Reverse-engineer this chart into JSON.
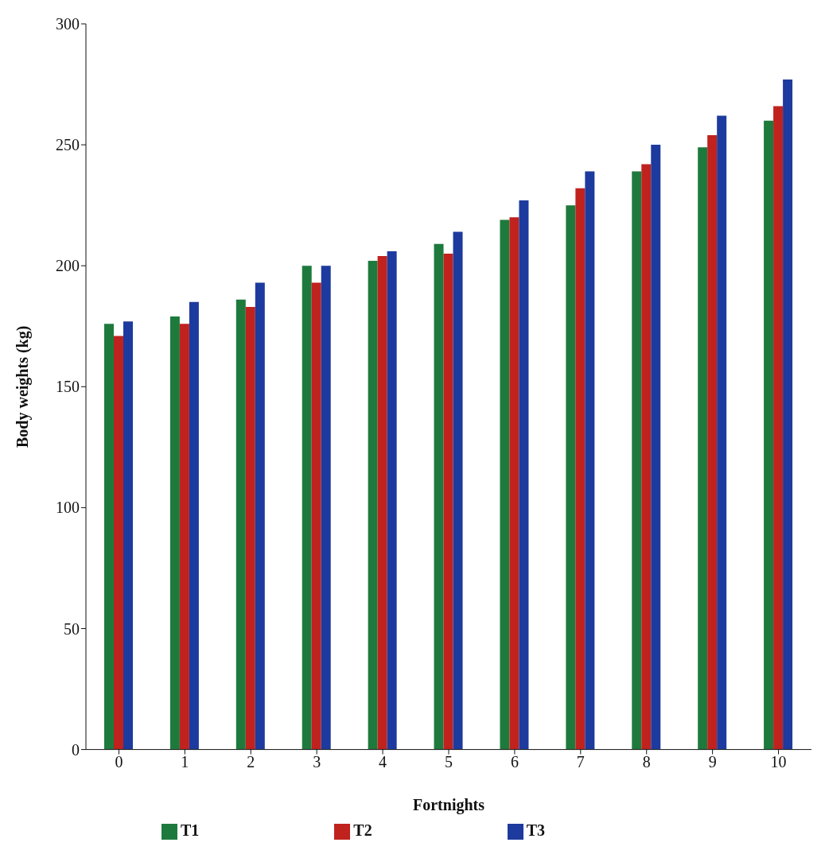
{
  "chart_data": {
    "type": "bar",
    "xlabel": "Fortnights",
    "ylabel": "Body weights (kg)",
    "categories": [
      "0",
      "1",
      "2",
      "3",
      "4",
      "5",
      "6",
      "7",
      "8",
      "9",
      "10"
    ],
    "series": [
      {
        "name": "T1",
        "color": "#1e7a3c",
        "values": [
          176,
          179,
          186,
          200,
          202,
          209,
          219,
          225,
          239,
          249,
          260
        ]
      },
      {
        "name": "T2",
        "color": "#c0221e",
        "values": [
          171,
          176,
          183,
          193,
          204,
          205,
          220,
          232,
          242,
          254,
          266
        ]
      },
      {
        "name": "T3",
        "color": "#1d3a9e",
        "values": [
          177,
          185,
          193,
          200,
          206,
          214,
          227,
          239,
          250,
          262,
          277
        ]
      }
    ],
    "ylim": [
      0,
      300
    ],
    "yticks": [
      0,
      50,
      100,
      150,
      200,
      250,
      300
    ],
    "grid": false,
    "legend": "bottom"
  }
}
